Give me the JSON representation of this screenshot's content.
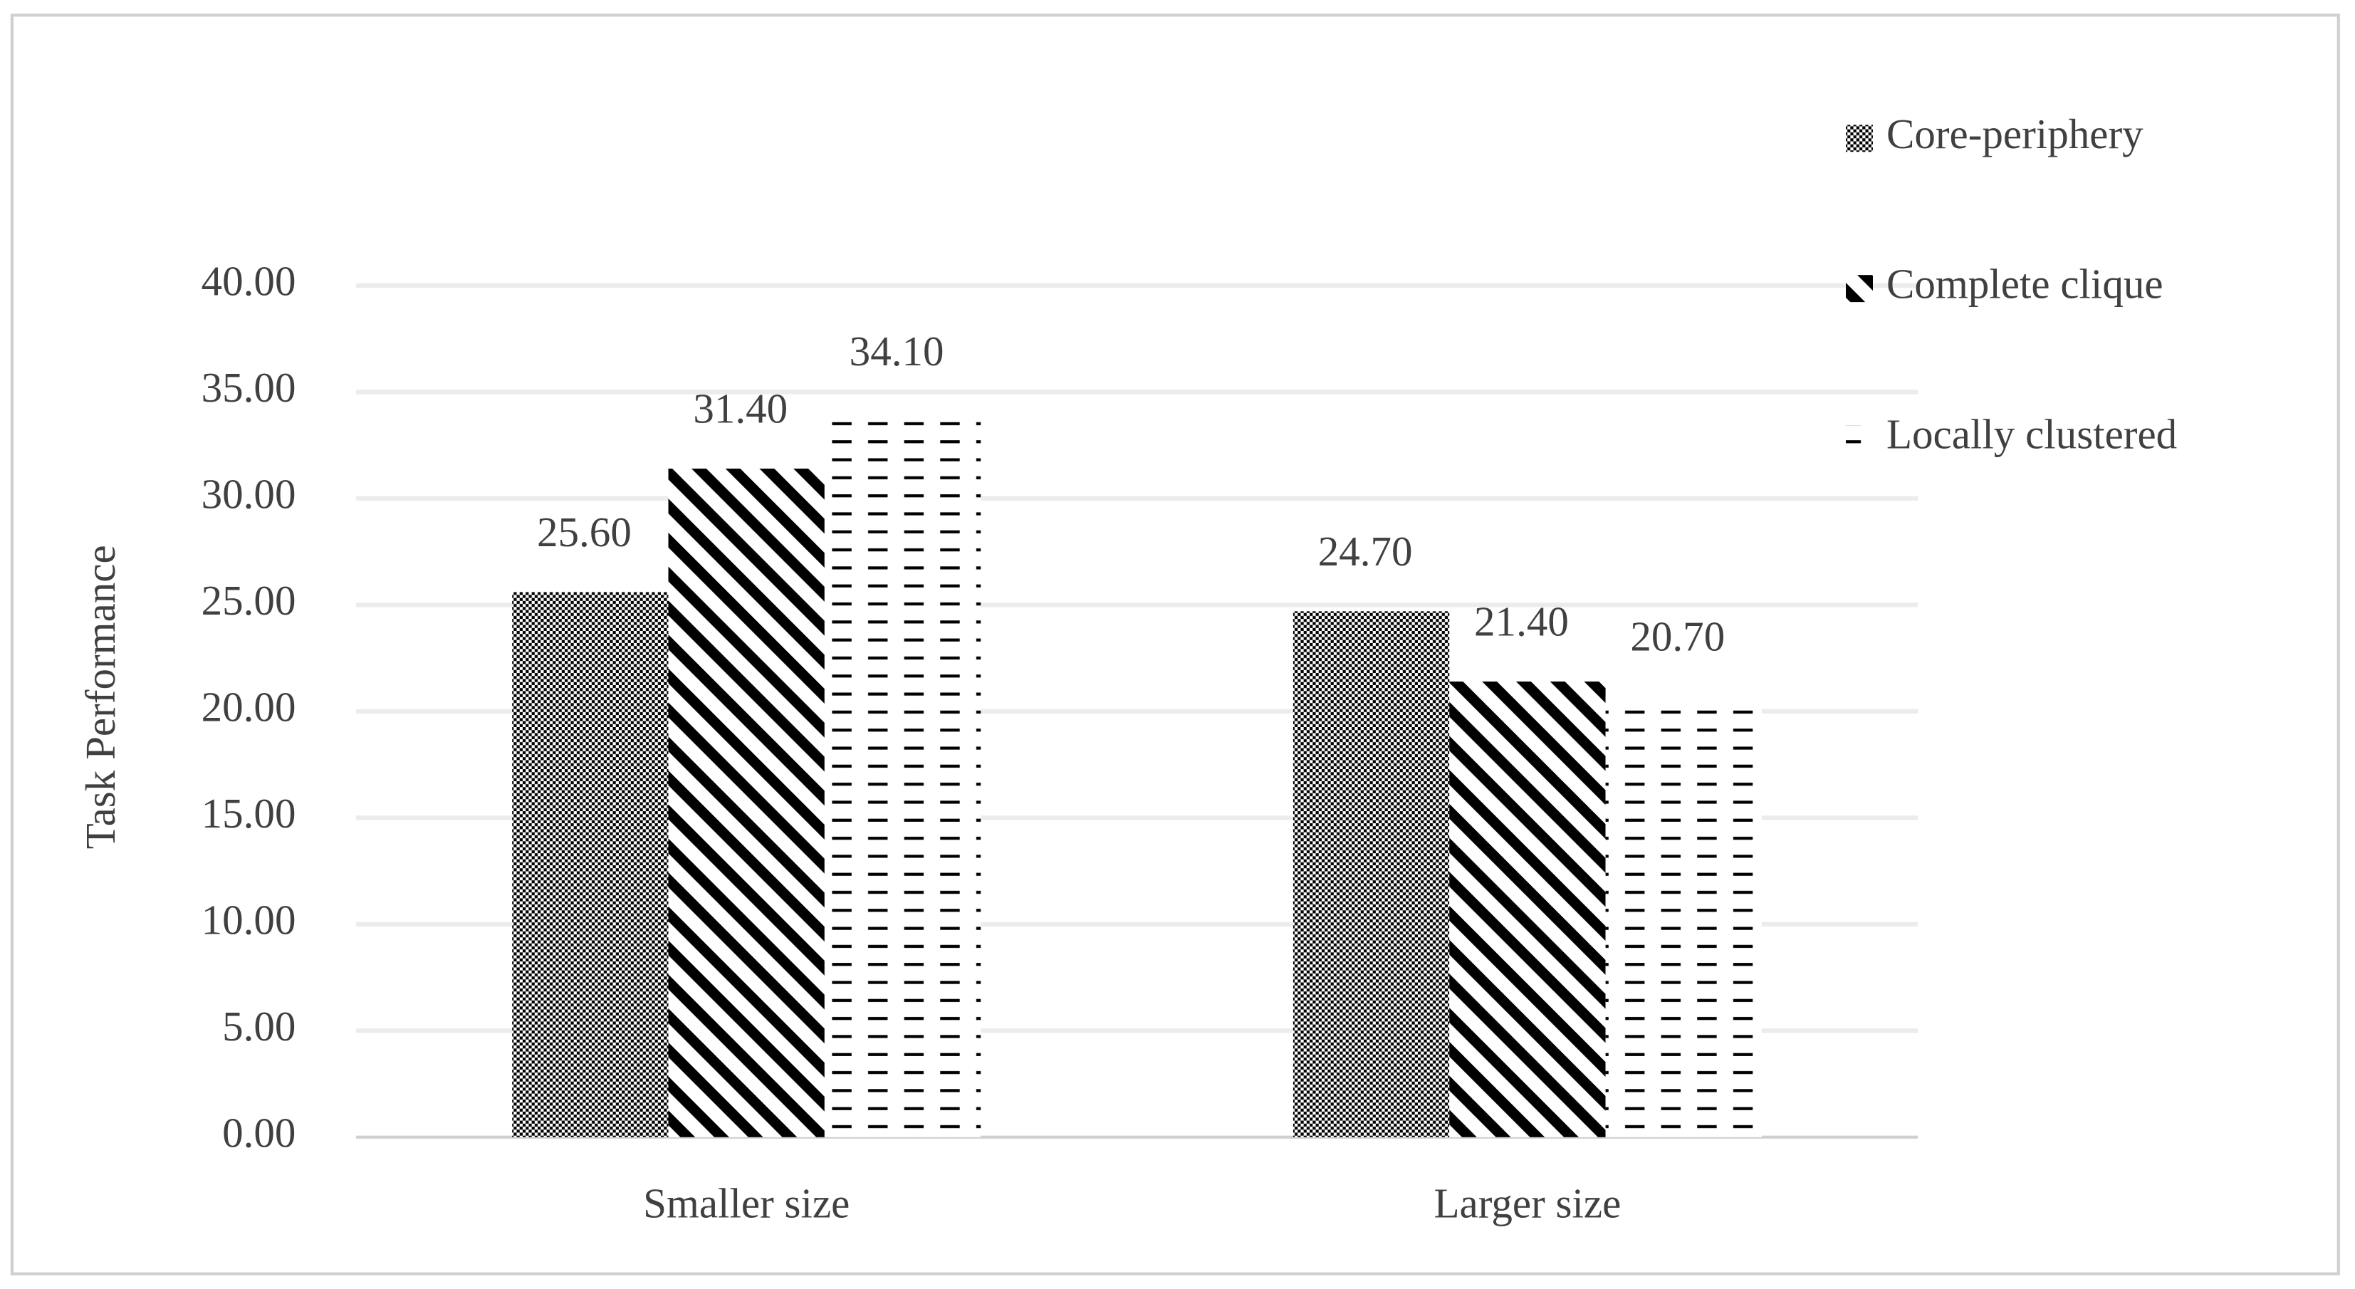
{
  "chart_data": {
    "type": "bar",
    "y_label": "Task Performance",
    "categories": [
      "Smaller  size",
      "Larger size"
    ],
    "series": [
      {
        "name": "Core-periphery",
        "color": "#000000",
        "pattern": "checker",
        "values": [
          25.6,
          24.7
        ],
        "value_labels": [
          "25.60",
          "24.70"
        ]
      },
      {
        "name": "Complete clique",
        "color": "#000000",
        "pattern": "diagonal",
        "values": [
          31.4,
          21.4
        ],
        "value_labels": [
          "31.40",
          "21.40"
        ]
      },
      {
        "name": "Locally clustered",
        "color": "#000000",
        "pattern": "dash",
        "values": [
          34.1,
          20.7
        ],
        "value_labels": [
          "34.10",
          "20.70"
        ]
      }
    ],
    "ylim": [
      0,
      40
    ],
    "yticks": [
      {
        "value": 0,
        "label": "0.00"
      },
      {
        "value": 5,
        "label": "5.00"
      },
      {
        "value": 10,
        "label": "10.00"
      },
      {
        "value": 15,
        "label": "15.00"
      },
      {
        "value": 20,
        "label": "20.00"
      },
      {
        "value": 25,
        "label": "25.00"
      },
      {
        "value": 30,
        "label": "30.00"
      },
      {
        "value": 35,
        "label": "35.00"
      },
      {
        "value": 40,
        "label": "40.00"
      }
    ],
    "grid": true,
    "legend": "top-right"
  }
}
